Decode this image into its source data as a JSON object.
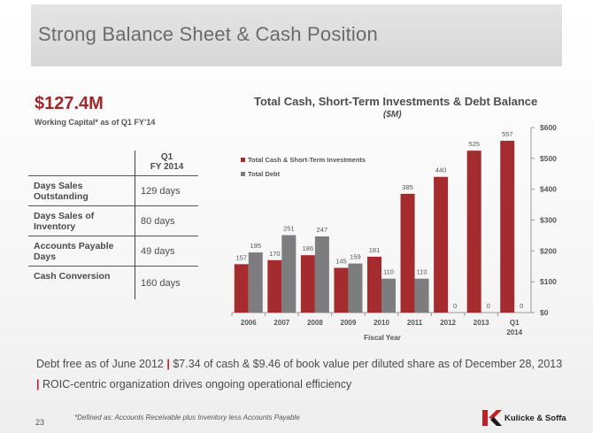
{
  "slide": {
    "title": "Strong Balance Sheet & Cash Position",
    "page_number": "23",
    "footnote": "*Defined as: Accounts Receivable plus Inventory less Accounts Payable"
  },
  "metric": {
    "value": "$127.4M",
    "caption": "Working Capital* as of Q1 FY’14"
  },
  "table": {
    "header_line1": "Q1",
    "header_line2": "FY 2014",
    "rows": [
      {
        "label": "Days Sales Outstanding",
        "value": "129 days"
      },
      {
        "label": "Days Sales of Inventory",
        "value": "80 days"
      },
      {
        "label": "Accounts Payable Days",
        "value": "49 days"
      },
      {
        "label": "Cash Conversion",
        "value": "160 days"
      }
    ]
  },
  "footer": {
    "part1": "Debt free as of June 2012",
    "sep1": "|",
    "part2": "$7.34 of cash & $9.46 of book value per diluted share as of December 28, 2013",
    "sep2": "|",
    "part3": "ROIC-centric organization drives ongoing operational efficiency"
  },
  "logo": {
    "text": "Kulicke & Soffa",
    "icon": "ks-logo-icon"
  },
  "colors": {
    "cash": "#a42c2f",
    "debt": "#7d7d7f",
    "accent": "#a3262a"
  },
  "chart_data": {
    "type": "bar",
    "title": "Total Cash, Short-Term Investments & Debt Balance",
    "subtitle": "($M)",
    "xlabel": "Fiscal Year",
    "ylabel": "",
    "categories": [
      "2006",
      "2007",
      "2008",
      "2009",
      "2010",
      "2011",
      "2012",
      "2013",
      "Q1 2014"
    ],
    "series": [
      {
        "name": "Total Cash & Short-Term Investments",
        "values": [
          157,
          170,
          186,
          145,
          181,
          385,
          440,
          525,
          557
        ]
      },
      {
        "name": "Total Debt",
        "values": [
          195,
          251,
          247,
          159,
          110,
          110,
          0,
          0,
          0
        ]
      }
    ],
    "ylim": [
      0,
      600
    ],
    "yticks": [
      "$0",
      "$100",
      "$200",
      "$300",
      "$400",
      "$500",
      "$600"
    ],
    "yaxis_side": "right",
    "legend": "top-left",
    "grid": false
  }
}
